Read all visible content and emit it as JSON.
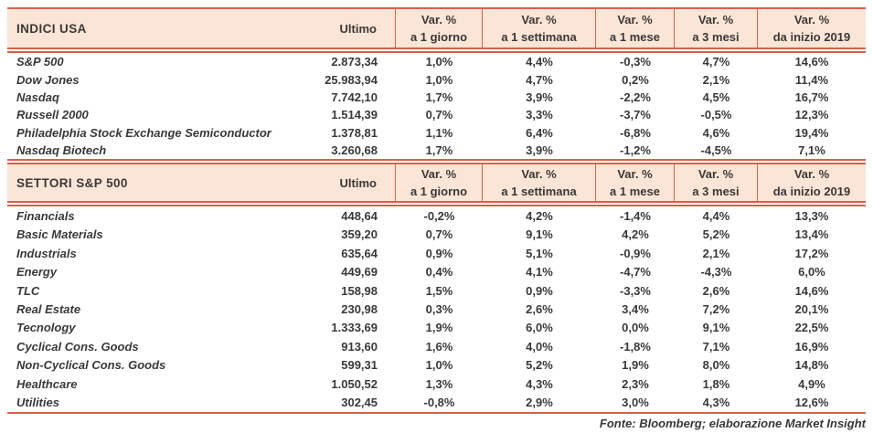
{
  "colors": {
    "rule_red": "#d9604c",
    "header_peach": "#fbe5d6",
    "ink": "#3b3838"
  },
  "tables": [
    {
      "title": "INDICI USA",
      "value_header": "Ultimo",
      "var_headers": [
        {
          "line1": "Var. %",
          "line2": "a 1 giorno"
        },
        {
          "line1": "Var. %",
          "line2": "a 1 settimana"
        },
        {
          "line1": "Var. %",
          "line2": "a 1 mese"
        },
        {
          "line1": "Var. %",
          "line2": "a 3 mesi"
        },
        {
          "line1": "Var. %",
          "line2": "da inizio 2019"
        }
      ],
      "rows": [
        {
          "name": "S&P 500",
          "ultimo": "2.873,34",
          "values": [
            "1,0%",
            "4,4%",
            "-0,3%",
            "4,7%",
            "14,6%"
          ]
        },
        {
          "name": "Dow Jones",
          "ultimo": "25.983,94",
          "values": [
            "1,0%",
            "4,7%",
            "0,2%",
            "2,1%",
            "11,4%"
          ]
        },
        {
          "name": "Nasdaq",
          "ultimo": "7.742,10",
          "values": [
            "1,7%",
            "3,9%",
            "-2,2%",
            "4,5%",
            "16,7%"
          ]
        },
        {
          "name": "Russell 2000",
          "ultimo": "1.514,39",
          "values": [
            "0,7%",
            "3,3%",
            "-3,7%",
            "-0,5%",
            "12,3%"
          ]
        },
        {
          "name": "Philadelphia Stock Exchange Semiconductor",
          "ultimo": "1.378,81",
          "values": [
            "1,1%",
            "6,4%",
            "-6,8%",
            "4,6%",
            "19,4%"
          ]
        },
        {
          "name": "Nasdaq Biotech",
          "ultimo": "3.260,68",
          "values": [
            "1,7%",
            "3,9%",
            "-1,2%",
            "-4,5%",
            "7,1%"
          ]
        }
      ]
    },
    {
      "title": "SETTORI S&P 500",
      "value_header": "Ultimo",
      "var_headers": [
        {
          "line1": "Var. %",
          "line2": "a 1 giorno"
        },
        {
          "line1": "Var. %",
          "line2": "a 1 settimana"
        },
        {
          "line1": "Var. %",
          "line2": "a 1 mese"
        },
        {
          "line1": "Var. %",
          "line2": "a 3 mesi"
        },
        {
          "line1": "Var. %",
          "line2": "da inizio 2019"
        }
      ],
      "rows": [
        {
          "name": "Financials",
          "ultimo": "448,64",
          "values": [
            "-0,2%",
            "4,2%",
            "-1,4%",
            "4,4%",
            "13,3%"
          ]
        },
        {
          "name": "Basic Materials",
          "ultimo": "359,20",
          "values": [
            "0,7%",
            "9,1%",
            "4,2%",
            "5,2%",
            "13,4%"
          ]
        },
        {
          "name": "Industrials",
          "ultimo": "635,64",
          "values": [
            "0,9%",
            "5,1%",
            "-0,9%",
            "2,1%",
            "17,2%"
          ]
        },
        {
          "name": "Energy",
          "ultimo": "449,69",
          "values": [
            "0,4%",
            "4,1%",
            "-4,7%",
            "-4,3%",
            "6,0%"
          ]
        },
        {
          "name": "TLC",
          "ultimo": "158,98",
          "values": [
            "1,5%",
            "0,9%",
            "-3,3%",
            "2,6%",
            "14,6%"
          ]
        },
        {
          "name": "Real Estate",
          "ultimo": "230,98",
          "values": [
            "0,3%",
            "2,6%",
            "3,4%",
            "7,2%",
            "20,1%"
          ]
        },
        {
          "name": "Tecnology",
          "ultimo": "1.333,69",
          "values": [
            "1,9%",
            "6,0%",
            "0,0%",
            "9,1%",
            "22,5%"
          ]
        },
        {
          "name": "Cyclical Cons. Goods",
          "ultimo": "913,60",
          "values": [
            "1,6%",
            "4,0%",
            "-1,8%",
            "7,1%",
            "16,9%"
          ]
        },
        {
          "name": "Non-Cyclical Cons. Goods",
          "ultimo": "599,31",
          "values": [
            "1,0%",
            "5,2%",
            "1,9%",
            "8,0%",
            "14,8%"
          ]
        },
        {
          "name": "Healthcare",
          "ultimo": "1.050,52",
          "values": [
            "1,3%",
            "4,3%",
            "2,3%",
            "1,8%",
            "4,9%"
          ]
        },
        {
          "name": "Utilities",
          "ultimo": "302,45",
          "values": [
            "-0,8%",
            "2,9%",
            "3,0%",
            "4,3%",
            "12,6%"
          ]
        }
      ]
    }
  ],
  "footer": "Fonte: Bloomberg; elaborazione Market Insight"
}
